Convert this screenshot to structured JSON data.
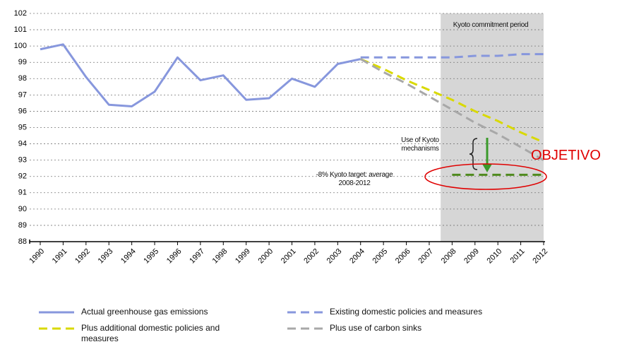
{
  "chart_data": {
    "type": "line",
    "x": [
      1990,
      1991,
      1992,
      1993,
      1994,
      1995,
      1996,
      1997,
      1998,
      1999,
      2000,
      2001,
      2002,
      2003,
      2004,
      2005,
      2006,
      2007,
      2008,
      2009,
      2010,
      2011,
      2012
    ],
    "xlim": [
      1990,
      2012
    ],
    "xticks": [
      1990,
      1991,
      1992,
      1993,
      1994,
      1995,
      1996,
      1997,
      1998,
      1999,
      2000,
      2001,
      2002,
      2003,
      2004,
      2005,
      2006,
      2007,
      2008,
      2009,
      2010,
      2011,
      2012
    ],
    "ylim": [
      88,
      102
    ],
    "yticks": [
      88,
      89,
      90,
      91,
      92,
      93,
      94,
      95,
      96,
      97,
      98,
      99,
      100,
      101,
      102
    ],
    "grid": true,
    "kyoto_period": [
      2008,
      2012
    ],
    "series": [
      {
        "name": "Actual greenhouse gas emissions",
        "color": "#8797dd",
        "dashed": false,
        "values": [
          99.8,
          100.1,
          98.1,
          96.4,
          96.3,
          97.2,
          99.3,
          97.9,
          98.2,
          96.7,
          96.8,
          98.0,
          97.5,
          98.9,
          99.2,
          null,
          null,
          null,
          null,
          null,
          null,
          null,
          null
        ]
      },
      {
        "name": "Existing domestic policies and measures",
        "color": "#8797dd",
        "dashed": true,
        "values": [
          null,
          null,
          null,
          null,
          null,
          null,
          null,
          null,
          null,
          null,
          null,
          null,
          null,
          null,
          99.3,
          99.3,
          99.3,
          99.3,
          99.3,
          99.4,
          99.4,
          99.5,
          99.5
        ]
      },
      {
        "name": "Plus additional domestic policies and measures",
        "color": "#d9d900",
        "dashed": true,
        "values": [
          null,
          null,
          null,
          null,
          null,
          null,
          null,
          null,
          null,
          null,
          null,
          null,
          null,
          null,
          99.2,
          98.6,
          97.9,
          97.3,
          96.7,
          96.0,
          95.4,
          94.7,
          94.1
        ]
      },
      {
        "name": "Plus use of carbon sinks",
        "color": "#a8a8a8",
        "dashed": true,
        "values": [
          null,
          null,
          null,
          null,
          null,
          null,
          null,
          null,
          null,
          null,
          null,
          null,
          null,
          null,
          99.2,
          98.4,
          97.7,
          96.9,
          96.1,
          95.3,
          94.6,
          93.8,
          93.0
        ]
      },
      {
        "name": "-8% Kyoto target",
        "color": "#4f8a1e",
        "dashed": true,
        "in_legend": false,
        "values": [
          null,
          null,
          null,
          null,
          null,
          null,
          null,
          null,
          null,
          null,
          null,
          null,
          null,
          null,
          null,
          null,
          null,
          null,
          92.1,
          92.1,
          92.1,
          92.1,
          92.1
        ]
      }
    ],
    "annotations": [
      "Kyoto commitment period",
      "Use of Kyoto mechanisms",
      "-8% Kyoto target: average 2008-2012",
      "OBJETIVO"
    ]
  }
}
